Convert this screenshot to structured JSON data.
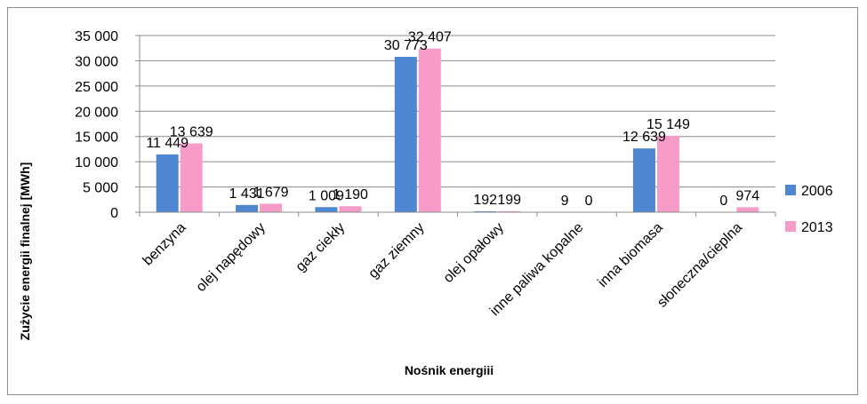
{
  "chart_data": {
    "type": "bar",
    "title": "",
    "xlabel": "Nośnik energiii",
    "ylabel": "Zużycie energii finalnej [MWh]",
    "ylim": [
      0,
      35000
    ],
    "yticks": [
      0,
      5000,
      10000,
      15000,
      20000,
      25000,
      30000,
      35000
    ],
    "ytick_labels": [
      "0",
      "5 000",
      "10 000",
      "15 000",
      "20 000",
      "25 000",
      "30 000",
      "35 000"
    ],
    "grid": true,
    "legend_position": "right",
    "categories": [
      "benzyna",
      "olej napędowy",
      "gaz ciekły",
      "gaz ziemny",
      "olej opałowy",
      "inne paliwa kopalne",
      "inna biomasa",
      "słoneczna/cieplna"
    ],
    "series": [
      {
        "name": "2006",
        "color": "#4f86d1",
        "values": [
          11449,
          1431,
          1009,
          30773,
          192,
          9,
          12639,
          0
        ],
        "labels": [
          "11 449",
          "1 431",
          "1 009",
          "30 773",
          "192",
          "9",
          "12 639",
          "0"
        ]
      },
      {
        "name": "2013",
        "color": "#f79cc9",
        "values": [
          13639,
          1679,
          1190,
          32407,
          199,
          0,
          15149,
          974
        ],
        "labels": [
          "13 639",
          "1 679",
          "1 190",
          "32 407",
          "199",
          "0",
          "15 149",
          "974"
        ]
      }
    ]
  }
}
